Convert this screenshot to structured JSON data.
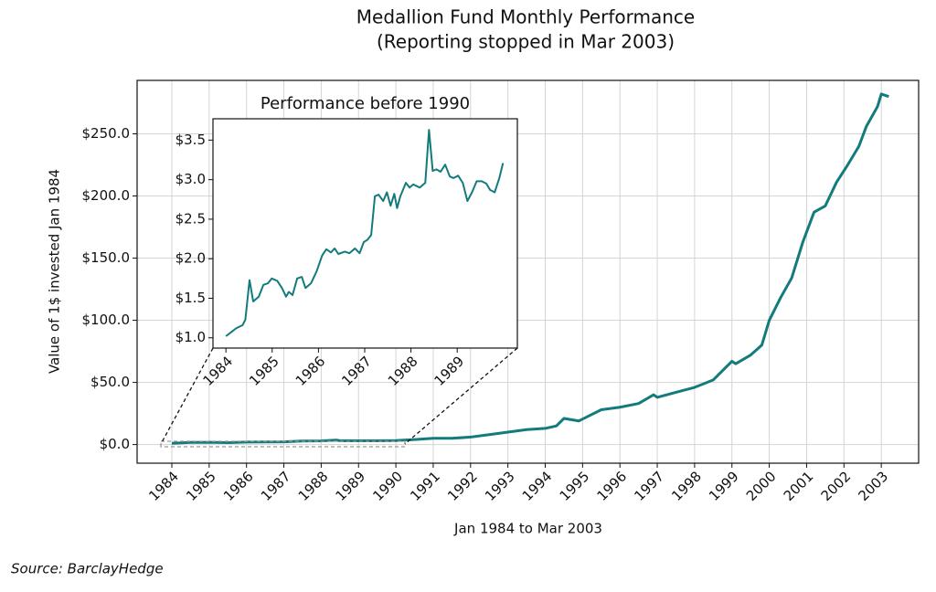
{
  "chart_data": [
    {
      "type": "line",
      "title": "Medallion Fund Monthly Performance",
      "subtitle": "(Reporting stopped in Mar 2003)",
      "x_label": "Jan 1984 to Mar 2003",
      "y_label": "Value of 1$ invested Jan 1984",
      "source": "Source: BarclayHedge",
      "x": [
        1984,
        1984.5,
        1985,
        1985.5,
        1986,
        1986.5,
        1987,
        1987.5,
        1988,
        1988.4,
        1988.5,
        1989,
        1989.5,
        1990,
        1990.5,
        1991,
        1991.5,
        1992,
        1992.5,
        1993,
        1993.5,
        1994,
        1994.3,
        1994.5,
        1994.9,
        1995.3,
        1995.5,
        1996,
        1996.5,
        1996.9,
        1997,
        1997.5,
        1998,
        1998.5,
        1999,
        1999.1,
        1999.5,
        1999.8,
        2000,
        2000.3,
        2000.6,
        2000.9,
        2001.2,
        2001.5,
        2001.8,
        2002.1,
        2002.4,
        2002.6,
        2002.9,
        2003,
        2003.2
      ],
      "series": [
        {
          "color": "#137b7b",
          "values": [
            1.0,
            1.7,
            1.8,
            1.5,
            2.0,
            2.1,
            2.2,
            2.8,
            2.9,
            3.6,
            3.1,
            3.0,
            3.0,
            3.2,
            4,
            5,
            5,
            6,
            8,
            10,
            12,
            13,
            15,
            21,
            19,
            25,
            28,
            30,
            33,
            40,
            38,
            42,
            46,
            52,
            67,
            65,
            72,
            80,
            100,
            118,
            134,
            163,
            187,
            192,
            211,
            225,
            240,
            256,
            272,
            282,
            280
          ]
        }
      ],
      "xlim": [
        1983.07,
        2004.0
      ],
      "ylim": [
        -15,
        293
      ],
      "xticks": [
        1984,
        1985,
        1986,
        1987,
        1988,
        1989,
        1990,
        1991,
        1992,
        1993,
        1994,
        1995,
        1996,
        1997,
        1998,
        1999,
        2000,
        2001,
        2002,
        2003
      ],
      "yticks": [
        {
          "value": 0,
          "label": "$0.0"
        },
        {
          "value": 50,
          "label": "$50.0"
        },
        {
          "value": 100,
          "label": "$100.0"
        },
        {
          "value": 150,
          "label": "$150.0"
        },
        {
          "value": 200,
          "label": "$200.0"
        },
        {
          "value": 250,
          "label": "$250.0"
        }
      ],
      "grid": true
    },
    {
      "type": "line",
      "title": "Performance before 1990",
      "x": [
        1984.0,
        1984.22,
        1984.36,
        1984.42,
        1984.51,
        1984.59,
        1984.71,
        1984.81,
        1984.91,
        1984.99,
        1985.11,
        1985.21,
        1985.3,
        1985.36,
        1985.44,
        1985.54,
        1985.64,
        1985.72,
        1985.84,
        1985.96,
        1986.08,
        1986.17,
        1986.27,
        1986.35,
        1986.43,
        1986.57,
        1986.67,
        1986.79,
        1986.89,
        1986.98,
        1987.06,
        1987.14,
        1987.22,
        1987.3,
        1987.4,
        1987.48,
        1987.56,
        1987.64,
        1987.7,
        1987.77,
        1987.89,
        1987.97,
        1988.05,
        1988.19,
        1988.31,
        1988.39,
        1988.47,
        1988.55,
        1988.64,
        1988.74,
        1988.84,
        1988.92,
        1989.02,
        1989.12,
        1989.22,
        1989.32,
        1989.42,
        1989.53,
        1989.63,
        1989.71,
        1989.81,
        1989.91,
        1989.99
      ],
      "series": [
        {
          "color": "#137b7b",
          "values": [
            1.02,
            1.12,
            1.16,
            1.23,
            1.73,
            1.46,
            1.52,
            1.67,
            1.69,
            1.75,
            1.72,
            1.63,
            1.52,
            1.58,
            1.54,
            1.75,
            1.77,
            1.63,
            1.69,
            1.84,
            2.04,
            2.12,
            2.08,
            2.13,
            2.06,
            2.09,
            2.07,
            2.13,
            2.07,
            2.21,
            2.24,
            2.3,
            2.79,
            2.81,
            2.73,
            2.84,
            2.67,
            2.82,
            2.64,
            2.79,
            2.96,
            2.9,
            2.94,
            2.9,
            2.96,
            3.63,
            3.11,
            3.13,
            3.1,
            3.19,
            3.04,
            3.02,
            3.05,
            2.96,
            2.73,
            2.84,
            2.98,
            2.98,
            2.95,
            2.87,
            2.84,
            3.02,
            3.21
          ]
        }
      ],
      "xlim": [
        1983.72,
        1990.3
      ],
      "ylim": [
        0.87,
        3.77
      ],
      "xticks": [
        1984,
        1985,
        1986,
        1987,
        1988,
        1989
      ],
      "yticks": [
        {
          "value": 1.0,
          "label": "$1.0"
        },
        {
          "value": 1.5,
          "label": "$1.5"
        },
        {
          "value": 2.0,
          "label": "$2.0"
        },
        {
          "value": 2.5,
          "label": "$2.5"
        },
        {
          "value": 3.0,
          "label": "$3.0"
        },
        {
          "value": 3.5,
          "label": "$3.5"
        }
      ],
      "grid": false
    }
  ]
}
